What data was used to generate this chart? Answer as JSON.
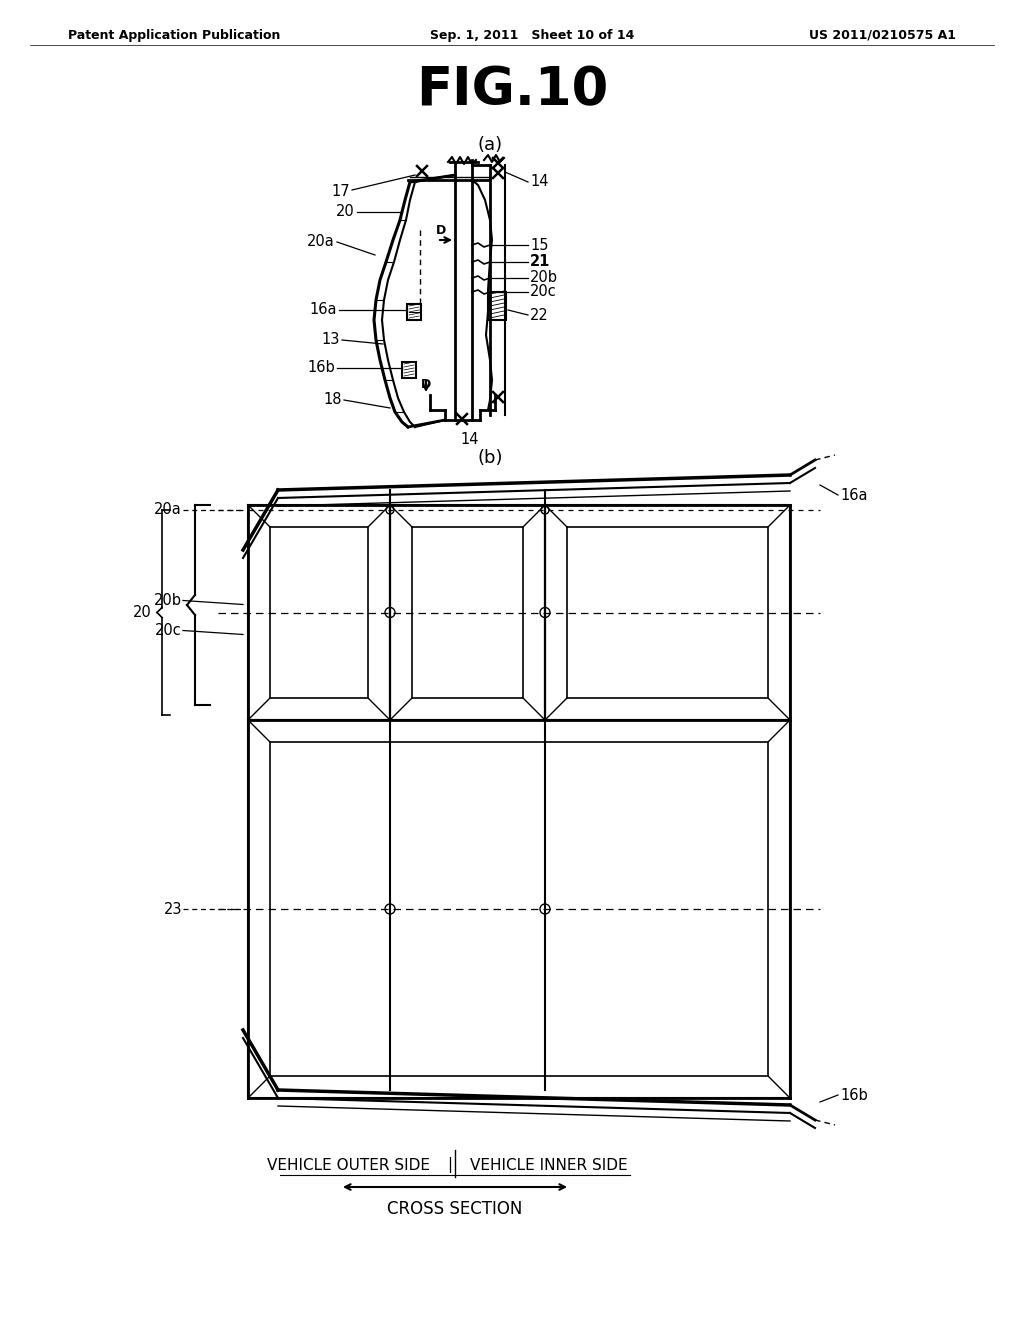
{
  "bg_color": "#ffffff",
  "header_left": "Patent Application Publication",
  "header_mid": "Sep. 1, 2011   Sheet 10 of 14",
  "header_right": "US 2011/0210575 A1",
  "fig_title": "FIG.10",
  "label_a": "(a)",
  "label_b": "(b)",
  "footer_left": "VEHICLE OUTER SIDE",
  "footer_right": "VEHICLE INNER SIDE",
  "footer_line2": "CROSS SECTION"
}
